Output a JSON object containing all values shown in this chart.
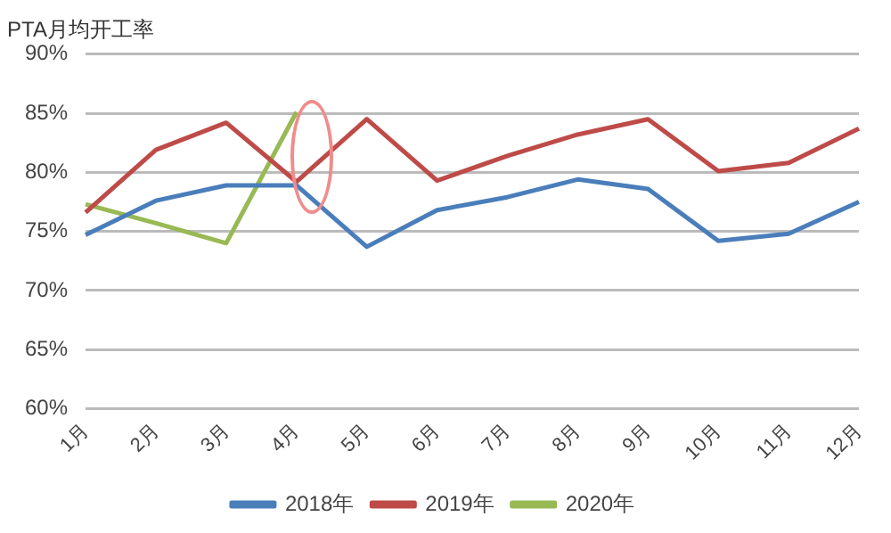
{
  "chart_data": {
    "type": "line",
    "title": "PTA月均开工率",
    "categories": [
      "1月",
      "2月",
      "3月",
      "4月",
      "5月",
      "6月",
      "7月",
      "8月",
      "9月",
      "10月",
      "11月",
      "12月"
    ],
    "series": [
      {
        "name": "2018年",
        "color": "#4a7ebb",
        "values": [
          74.7,
          77.6,
          78.9,
          78.9,
          73.7,
          76.8,
          77.9,
          79.4,
          78.6,
          74.2,
          74.8,
          77.5
        ]
      },
      {
        "name": "2019年",
        "color": "#be4b48",
        "values": [
          76.6,
          81.9,
          84.2,
          79.2,
          84.5,
          79.3,
          81.4,
          83.2,
          84.5,
          80.1,
          80.8,
          83.7
        ]
      },
      {
        "name": "2020年",
        "color": "#98b954",
        "values": [
          77.3,
          75.7,
          74.0,
          85.1,
          null,
          null,
          null,
          null,
          null,
          null,
          null,
          null
        ]
      }
    ],
    "ylim": [
      60,
      90
    ],
    "yticks": [
      {
        "value": 60,
        "label": "60%"
      },
      {
        "value": 65,
        "label": "65%"
      },
      {
        "value": 70,
        "label": "70%"
      },
      {
        "value": 75,
        "label": "75%"
      },
      {
        "value": 80,
        "label": "80%"
      },
      {
        "value": 85,
        "label": "85%"
      },
      {
        "value": 90,
        "label": "90%"
      }
    ],
    "grid": "y",
    "legend": "bottom",
    "marker": "none",
    "line_style": "solid"
  }
}
